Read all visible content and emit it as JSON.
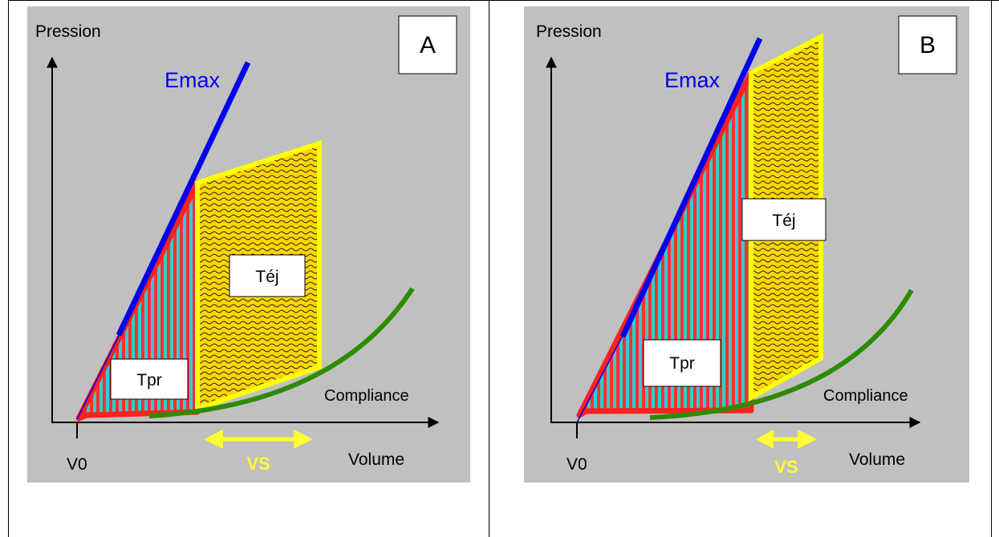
{
  "panels": [
    {
      "panel_label": "A",
      "y_axis_label": "Pression",
      "x_axis_label": "Volume",
      "origin_label": "V0",
      "emax_label": "Emax",
      "compliance_label": "Compliance",
      "ejection_label": "Téj",
      "pressure_label": "Tpr",
      "stroke_volume_label": "VS"
    },
    {
      "panel_label": "B",
      "y_axis_label": "Pression",
      "x_axis_label": "Volume",
      "origin_label": "V0",
      "emax_label": "Emax",
      "compliance_label": "Compliance",
      "ejection_label": "Téj",
      "pressure_label": "Tpr",
      "stroke_volume_label": "VS"
    }
  ],
  "colors": {
    "panel_background": "#c0c0c0",
    "emax_line": "#0000ee",
    "compliance_curve": "#2e8b00",
    "pressure_region_border": "#ff2020",
    "pressure_region_stripe": "#33cccc",
    "ejection_region_border": "#ffff00",
    "ejection_region_fill": "#ffd700",
    "stroke_volume_arrow": "#ffff33"
  }
}
